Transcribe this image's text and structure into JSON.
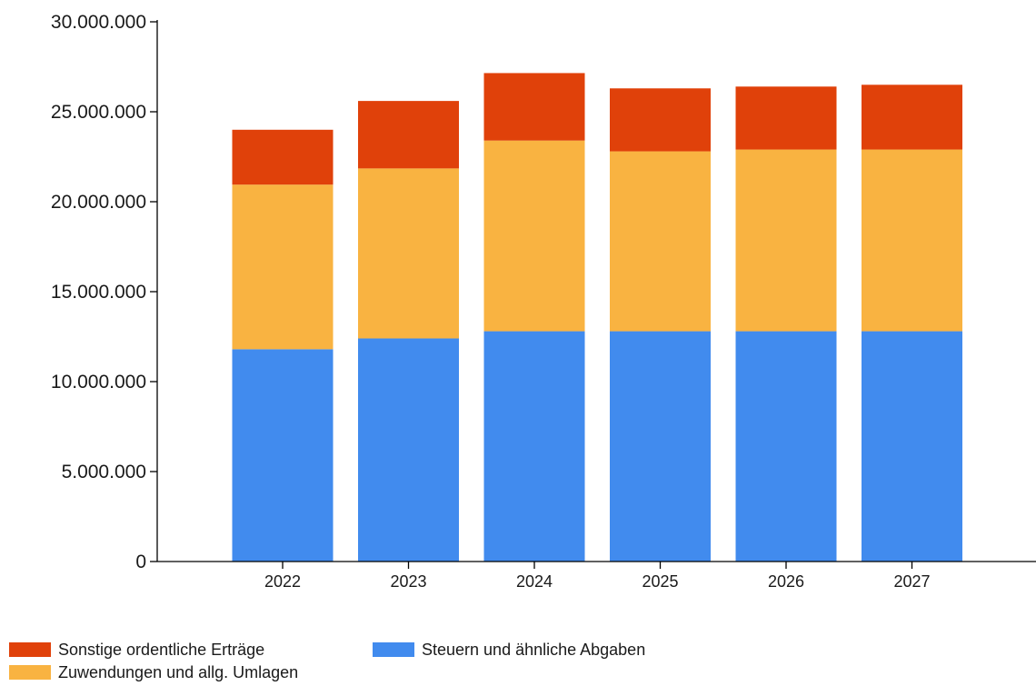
{
  "chart_data": {
    "type": "bar",
    "stacked": true,
    "categories": [
      "2022",
      "2023",
      "2024",
      "2025",
      "2026",
      "2027"
    ],
    "series": [
      {
        "name": "Steuern und ähnliche Abgaben",
        "color": "#418BEE",
        "values": [
          11800000,
          12400000,
          12800000,
          12800000,
          12800000,
          12800000
        ]
      },
      {
        "name": "Zuwendungen und allg. Umlagen",
        "color": "#F9B341",
        "values": [
          9150000,
          9450000,
          10600000,
          10000000,
          10100000,
          10100000
        ]
      },
      {
        "name": "Sonstige ordentliche Erträge",
        "color": "#E0410A",
        "values": [
          3050000,
          3750000,
          3750000,
          3500000,
          3500000,
          3600000
        ]
      }
    ],
    "y_ticks": [
      "0",
      "5.000.000",
      "10.000.000",
      "15.000.000",
      "20.000.000",
      "25.000.000",
      "30.000.000"
    ],
    "ylim": [
      0,
      30000000
    ],
    "grid": false,
    "legend_position": "bottom-left",
    "title": "",
    "xlabel": "",
    "ylabel": ""
  }
}
